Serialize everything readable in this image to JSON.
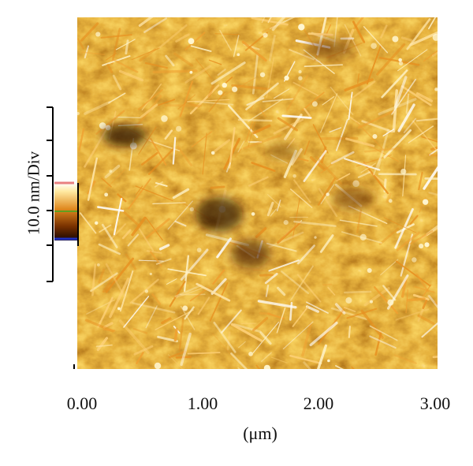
{
  "figure": {
    "scale_label": "10.0 nm/Div",
    "x_unit_label": "(μm)",
    "x_tick_labels": [
      "0.00",
      "1.00",
      "2.00",
      "3.00"
    ],
    "x_range_um": [
      0,
      3
    ],
    "colors": {
      "height_map_dark": "#3a1400",
      "height_map_mid": "#c87010",
      "height_map_light": "#ffe9a0",
      "axis": "#000000",
      "colorbar_top_marker": "#e88080",
      "colorbar_mid_marker": "#60a020",
      "colorbar_bottom_marker": "#2030c0"
    }
  }
}
